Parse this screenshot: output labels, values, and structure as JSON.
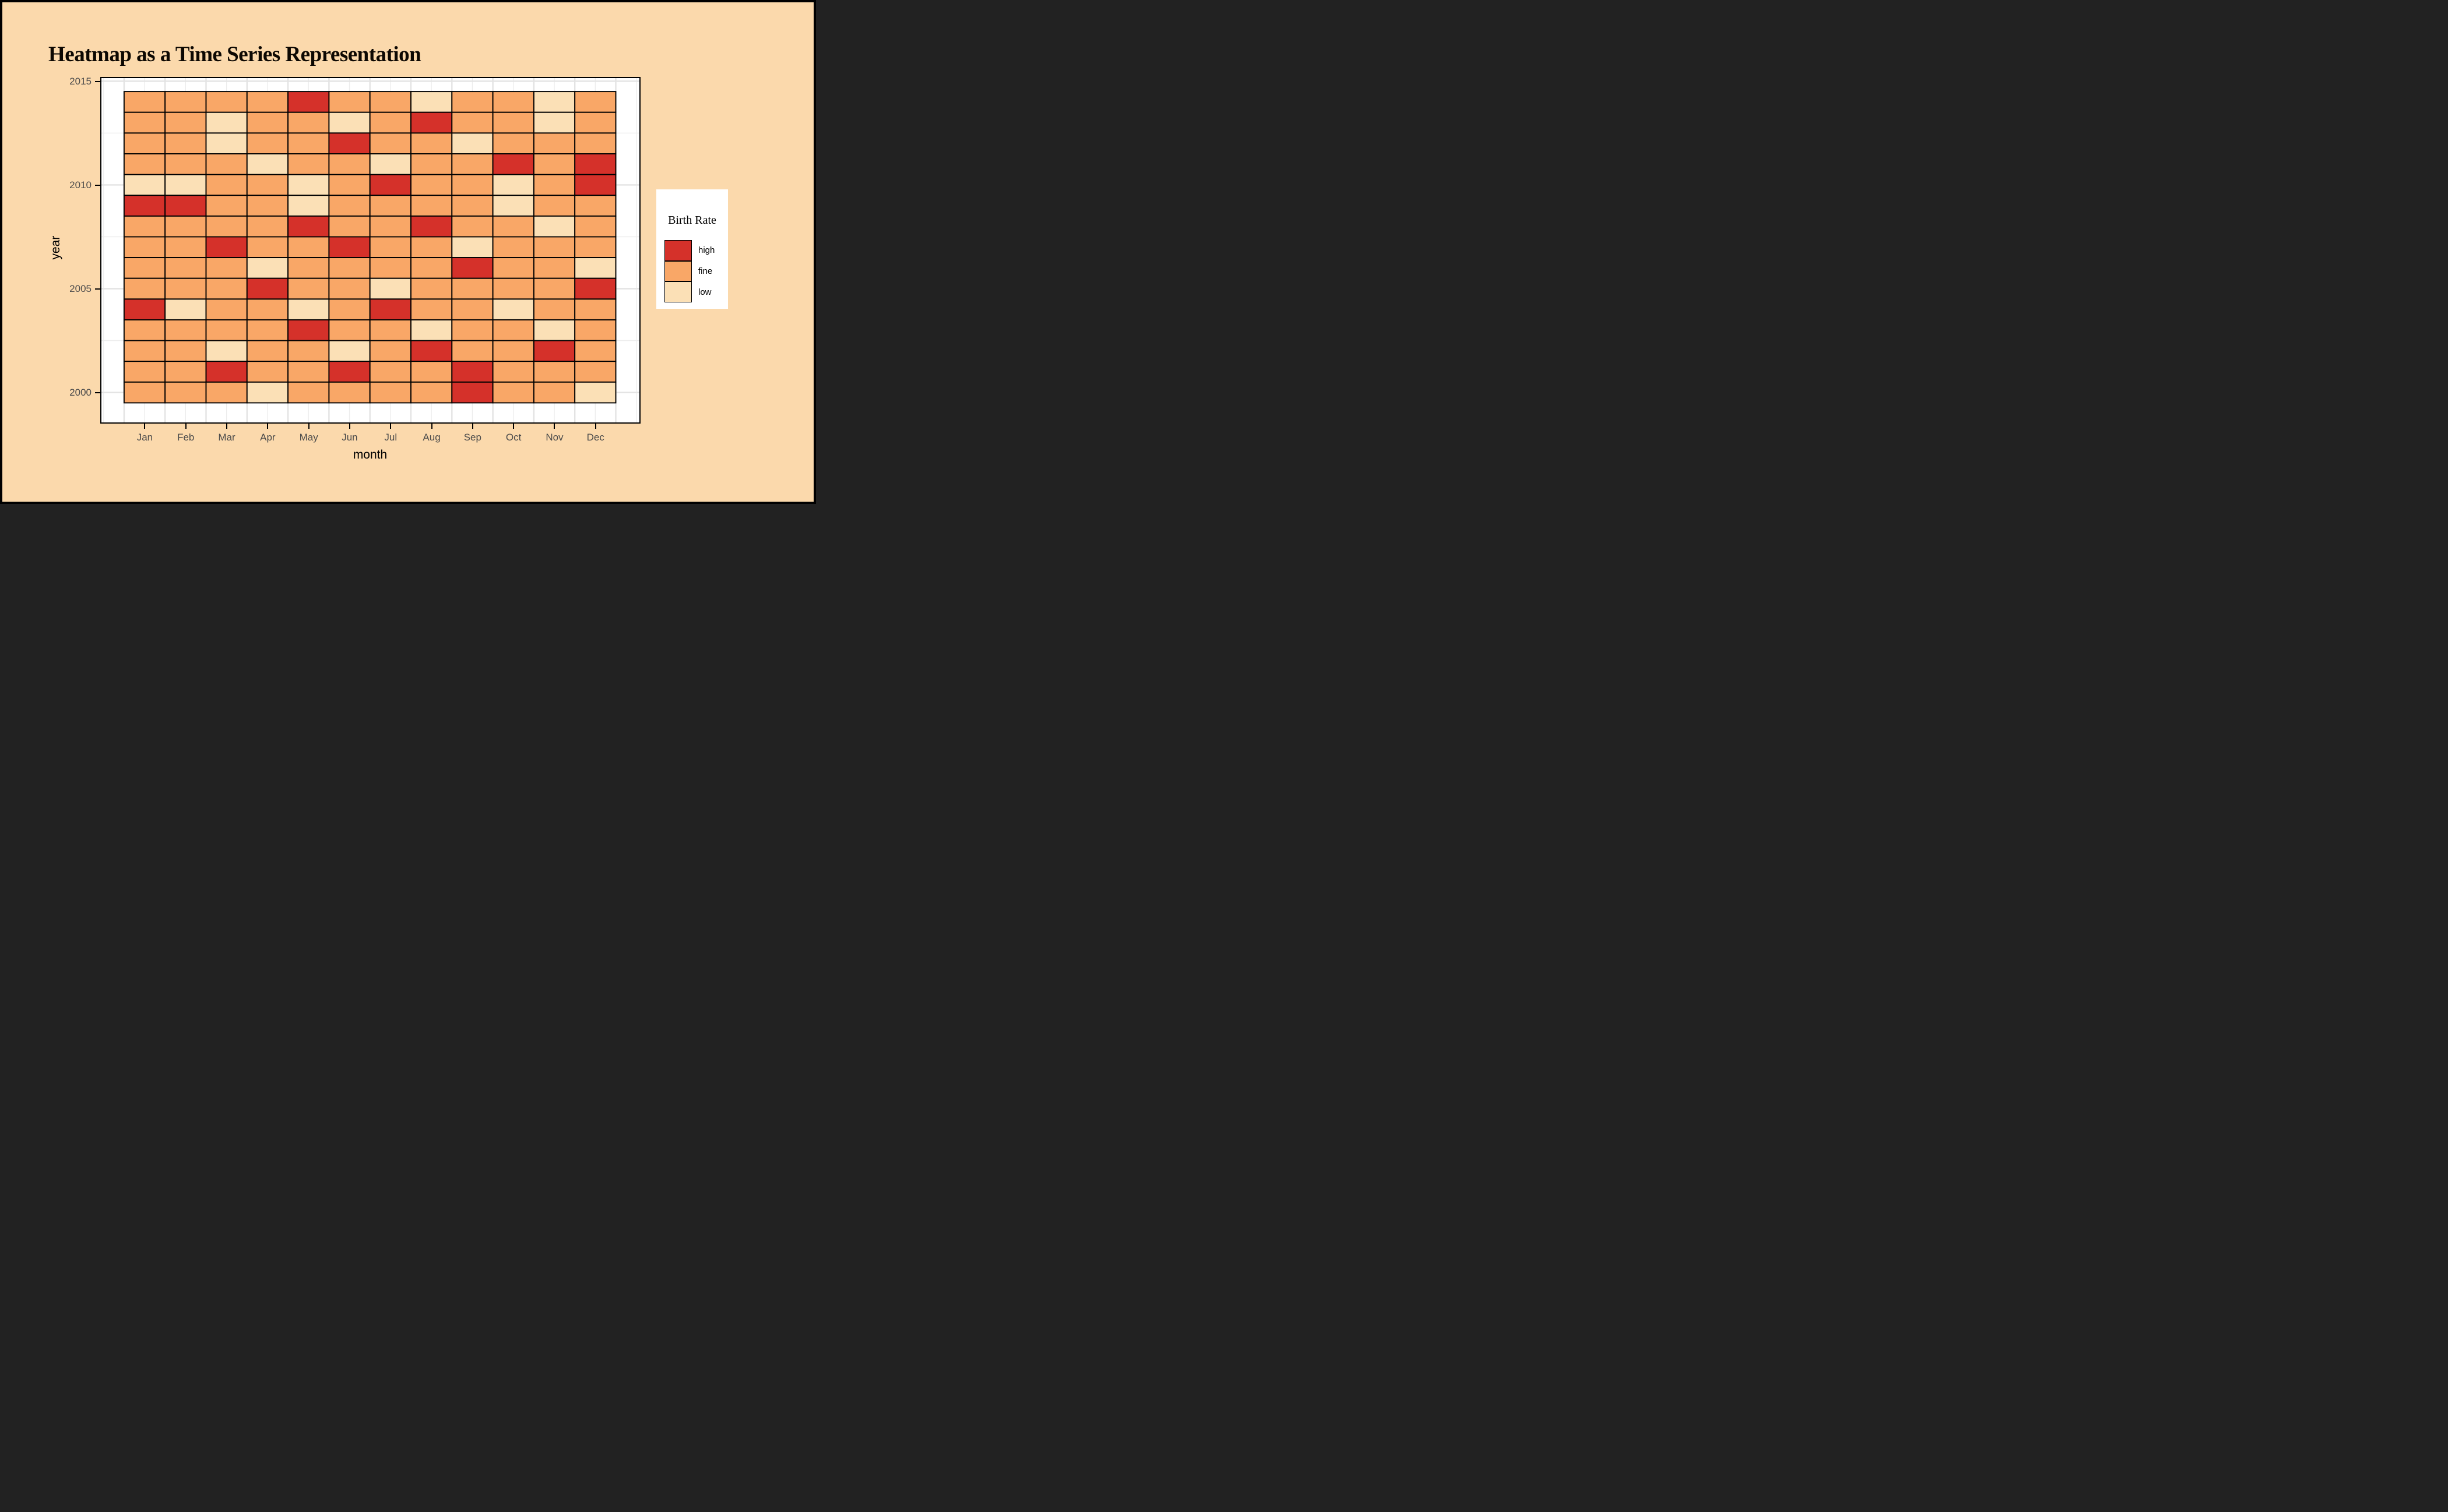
{
  "title": "Heatmap as a Time Series Representation",
  "colors": {
    "high": "#D5312A",
    "fine": "#F9A767",
    "low": "#FBE0B6",
    "page_background": "#FBD9AC",
    "panel_background": "#FFFFFF",
    "grid_major": "#E3E3E3",
    "grid_minor": "#ECECEC",
    "cell_border": "#000000",
    "tick_label": "#4A4A4A",
    "axis_title": "#000000"
  },
  "legend": {
    "title": "Birth Rate",
    "entries": [
      {
        "label": "high",
        "level": "high"
      },
      {
        "label": "fine",
        "level": "fine"
      },
      {
        "label": "low",
        "level": "low"
      }
    ]
  },
  "axes": {
    "x_title": "month",
    "y_title": "year",
    "x_tick_labels": [
      "Jan",
      "Feb",
      "Mar",
      "Apr",
      "May",
      "Jun",
      "Jul",
      "Aug",
      "Sep",
      "Oct",
      "Nov",
      "Dec"
    ],
    "y_tick_labels": [
      "2015",
      "2010",
      "2005",
      "2000"
    ]
  },
  "chart_data": {
    "type": "heatmap",
    "title": "Heatmap as a Time Series Representation",
    "xlabel": "month",
    "ylabel": "year",
    "x_categories": [
      "Jan",
      "Feb",
      "Mar",
      "Apr",
      "May",
      "Jun",
      "Jul",
      "Aug",
      "Sep",
      "Oct",
      "Nov",
      "Dec"
    ],
    "y_axis_ticks": [
      2015,
      2010,
      2005,
      2000
    ],
    "y_range_years": [
      2000,
      2014
    ],
    "value_levels": [
      "low",
      "fine",
      "high"
    ],
    "legend_title": "Birth Rate",
    "legend_position": "right",
    "grid": true,
    "rows": [
      {
        "year": 2014,
        "values": [
          "fine",
          "fine",
          "fine",
          "fine",
          "high",
          "fine",
          "fine",
          "low",
          "fine",
          "fine",
          "low",
          "fine"
        ]
      },
      {
        "year": 2013,
        "values": [
          "fine",
          "fine",
          "low",
          "fine",
          "fine",
          "low",
          "fine",
          "high",
          "fine",
          "fine",
          "low",
          "fine"
        ]
      },
      {
        "year": 2012,
        "values": [
          "fine",
          "fine",
          "low",
          "fine",
          "fine",
          "high",
          "fine",
          "fine",
          "low",
          "fine",
          "fine",
          "fine"
        ]
      },
      {
        "year": 2011,
        "values": [
          "fine",
          "fine",
          "fine",
          "low",
          "fine",
          "fine",
          "low",
          "fine",
          "fine",
          "high",
          "fine",
          "high"
        ]
      },
      {
        "year": 2010,
        "values": [
          "low",
          "low",
          "fine",
          "fine",
          "low",
          "fine",
          "high",
          "fine",
          "fine",
          "low",
          "fine",
          "high"
        ]
      },
      {
        "year": 2009,
        "values": [
          "high",
          "high",
          "fine",
          "fine",
          "low",
          "fine",
          "fine",
          "fine",
          "fine",
          "low",
          "fine",
          "fine"
        ]
      },
      {
        "year": 2008,
        "values": [
          "fine",
          "fine",
          "fine",
          "fine",
          "high",
          "fine",
          "fine",
          "high",
          "fine",
          "fine",
          "low",
          "fine"
        ]
      },
      {
        "year": 2007,
        "values": [
          "fine",
          "fine",
          "high",
          "fine",
          "fine",
          "high",
          "fine",
          "fine",
          "low",
          "fine",
          "fine",
          "fine"
        ]
      },
      {
        "year": 2006,
        "values": [
          "fine",
          "fine",
          "fine",
          "low",
          "fine",
          "fine",
          "fine",
          "fine",
          "high",
          "fine",
          "fine",
          "low"
        ]
      },
      {
        "year": 2005,
        "values": [
          "fine",
          "fine",
          "fine",
          "high",
          "fine",
          "fine",
          "low",
          "fine",
          "fine",
          "fine",
          "fine",
          "high"
        ]
      },
      {
        "year": 2004,
        "values": [
          "high",
          "low",
          "fine",
          "fine",
          "low",
          "fine",
          "high",
          "fine",
          "fine",
          "low",
          "fine",
          "fine"
        ]
      },
      {
        "year": 2003,
        "values": [
          "fine",
          "fine",
          "fine",
          "fine",
          "high",
          "fine",
          "fine",
          "low",
          "fine",
          "fine",
          "low",
          "fine"
        ]
      },
      {
        "year": 2002,
        "values": [
          "fine",
          "fine",
          "low",
          "fine",
          "fine",
          "low",
          "fine",
          "high",
          "fine",
          "fine",
          "high",
          "fine"
        ]
      },
      {
        "year": 2001,
        "values": [
          "fine",
          "fine",
          "high",
          "fine",
          "fine",
          "high",
          "fine",
          "fine",
          "high",
          "fine",
          "fine",
          "fine"
        ]
      },
      {
        "year": 2000,
        "values": [
          "fine",
          "fine",
          "fine",
          "low",
          "fine",
          "fine",
          "fine",
          "fine",
          "high",
          "fine",
          "fine",
          "low"
        ]
      }
    ]
  }
}
